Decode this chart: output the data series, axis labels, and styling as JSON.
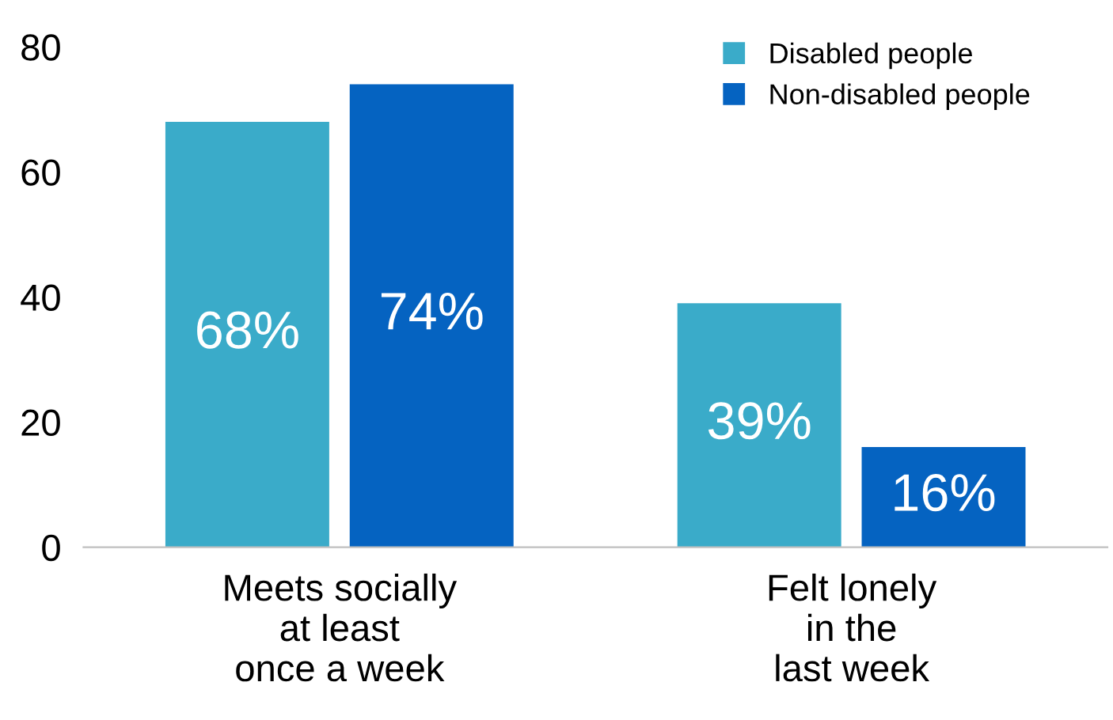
{
  "chart_data": {
    "type": "bar",
    "categories": [
      "Meets socially\nat least\nonce a week",
      "Felt lonely\nin the\nlast week"
    ],
    "series": [
      {
        "name": "Disabled people",
        "color": "#3aabc9",
        "values": [
          68,
          39
        ],
        "value_labels": [
          "68%",
          "39%"
        ]
      },
      {
        "name": "Non-disabled people",
        "color": "#0563c1",
        "values": [
          74,
          16
        ],
        "value_labels": [
          "74%",
          "16%"
        ]
      }
    ],
    "ylim": [
      0,
      80
    ],
    "yticks": [
      0,
      20,
      40,
      60,
      80
    ],
    "grid": false,
    "legend": "top right"
  }
}
